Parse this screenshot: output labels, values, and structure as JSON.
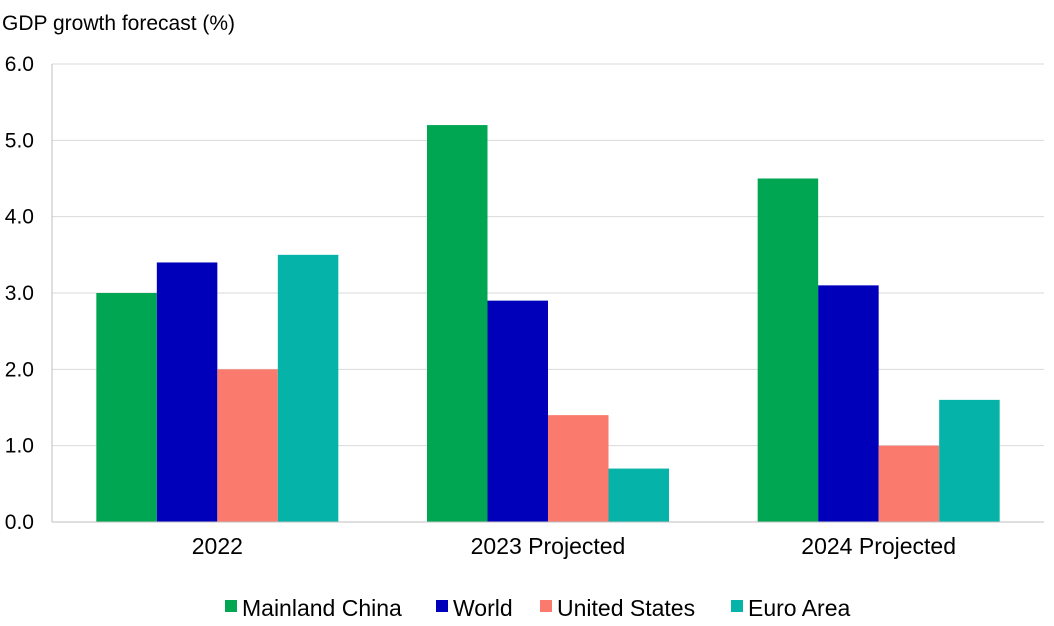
{
  "chart_data": {
    "type": "bar",
    "title": "",
    "xlabel": "",
    "ylabel": "GDP growth forecast (%)",
    "categories": [
      "2022",
      "2023 Projected",
      "2024 Projected"
    ],
    "series": [
      {
        "name": "Mainland China",
        "color": "#00A651",
        "values": [
          3.0,
          5.2,
          4.5
        ]
      },
      {
        "name": "World",
        "color": "#0000BB",
        "values": [
          3.4,
          2.9,
          3.1
        ]
      },
      {
        "name": "United States",
        "color": "#FA7A6E",
        "values": [
          2.0,
          1.4,
          1.0
        ]
      },
      {
        "name": "Euro Area",
        "color": "#06B3A9",
        "values": [
          3.5,
          0.7,
          1.6
        ]
      }
    ],
    "ylim": [
      0,
      6
    ],
    "yticks": [
      "0.0",
      "1.0",
      "2.0",
      "3.0",
      "4.0",
      "5.0",
      "6.0"
    ],
    "grid": true,
    "legend_position": "bottom"
  }
}
